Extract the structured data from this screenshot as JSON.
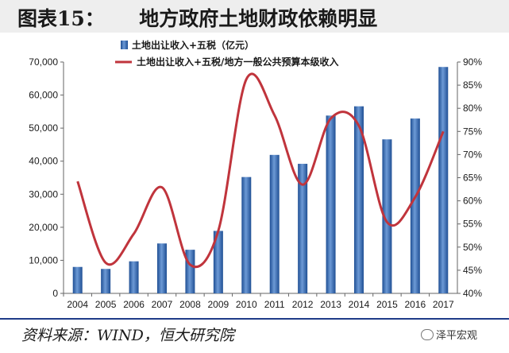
{
  "title": "图表15：     地方政府土地财政依赖明显",
  "source": "资料来源：WIND，恒大研究院",
  "watermark": "泽平宏观",
  "chart_data": {
    "type": "bar+line",
    "categories": [
      "2004",
      "2005",
      "2006",
      "2007",
      "2008",
      "2009",
      "2010",
      "2011",
      "2012",
      "2013",
      "2014",
      "2015",
      "2016",
      "2017"
    ],
    "series": [
      {
        "name": "土地出让收入+五税（亿元）",
        "type": "bar",
        "axis": "left",
        "color": "#3a6fb5",
        "values": [
          8000,
          7400,
          9700,
          15100,
          13200,
          18900,
          35200,
          41900,
          39200,
          53800,
          56600,
          46600,
          52900,
          68500
        ]
      },
      {
        "name": "土地出让收入+五税/地方一般公共预算本级收入",
        "type": "line",
        "axis": "right",
        "color": "#c0343c",
        "values": [
          64.2,
          46.6,
          52.9,
          62.9,
          46.2,
          53.5,
          86.3,
          78.5,
          63.5,
          77.8,
          76.2,
          55.4,
          60.8,
          75.0
        ]
      }
    ],
    "yleft": {
      "min": 0,
      "max": 70000,
      "step": 10000,
      "ticks": [
        "0",
        "10,000",
        "20,000",
        "30,000",
        "40,000",
        "50,000",
        "60,000",
        "70,000"
      ]
    },
    "yright": {
      "min": 40,
      "max": 90,
      "step": 5,
      "ticks": [
        "40%",
        "45%",
        "50%",
        "55%",
        "60%",
        "65%",
        "70%",
        "75%",
        "80%",
        "85%",
        "90%"
      ]
    },
    "legend_position": "top-left",
    "grid": false
  }
}
